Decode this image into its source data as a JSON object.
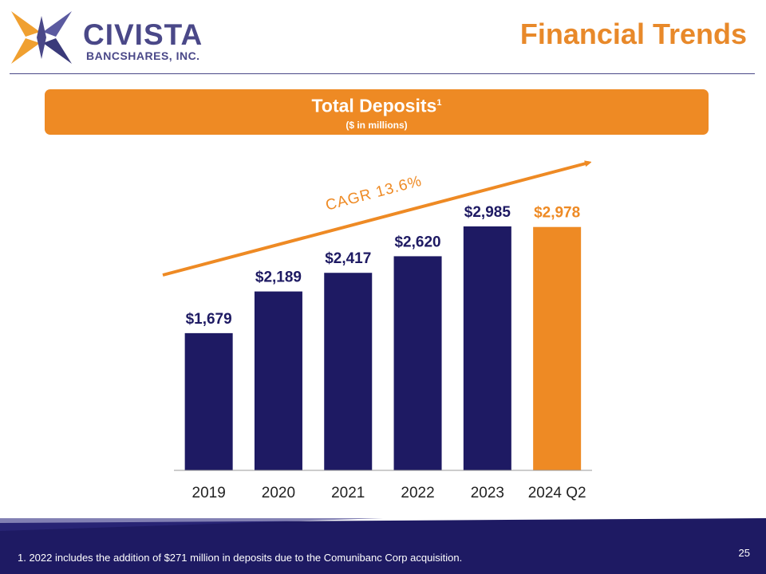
{
  "header": {
    "logo_name": "CIVISTA",
    "logo_sub": "BANCSHARES, INC.",
    "title": "Financial Trends"
  },
  "banner": {
    "title": "Total Deposits",
    "superscript": "1",
    "subtitle": "($ in millions)"
  },
  "chart_data": {
    "type": "bar",
    "categories": [
      "2019",
      "2020",
      "2021",
      "2022",
      "2023",
      "2024 Q2"
    ],
    "values": [
      1679,
      2189,
      2417,
      2620,
      2985,
      2978
    ],
    "value_labels": [
      "$1,679",
      "$2,189",
      "$2,417",
      "$2,620",
      "$2,985",
      "$2,978"
    ],
    "colors": [
      "#1e1a63",
      "#1e1a63",
      "#1e1a63",
      "#1e1a63",
      "#1e1a63",
      "#ee8a24"
    ],
    "ylim": [
      0,
      3000
    ],
    "annotation": "CAGR 13.6%",
    "grid": false,
    "legend": "none"
  },
  "footer": {
    "footnote": "1. 2022 includes the addition of $271 million in deposits due to the Comunibanc Corp acquisition.",
    "page_number": "25"
  },
  "colors": {
    "navy": "#1e1a63",
    "orange": "#ee8a24",
    "brand_purple": "#4a4888"
  }
}
